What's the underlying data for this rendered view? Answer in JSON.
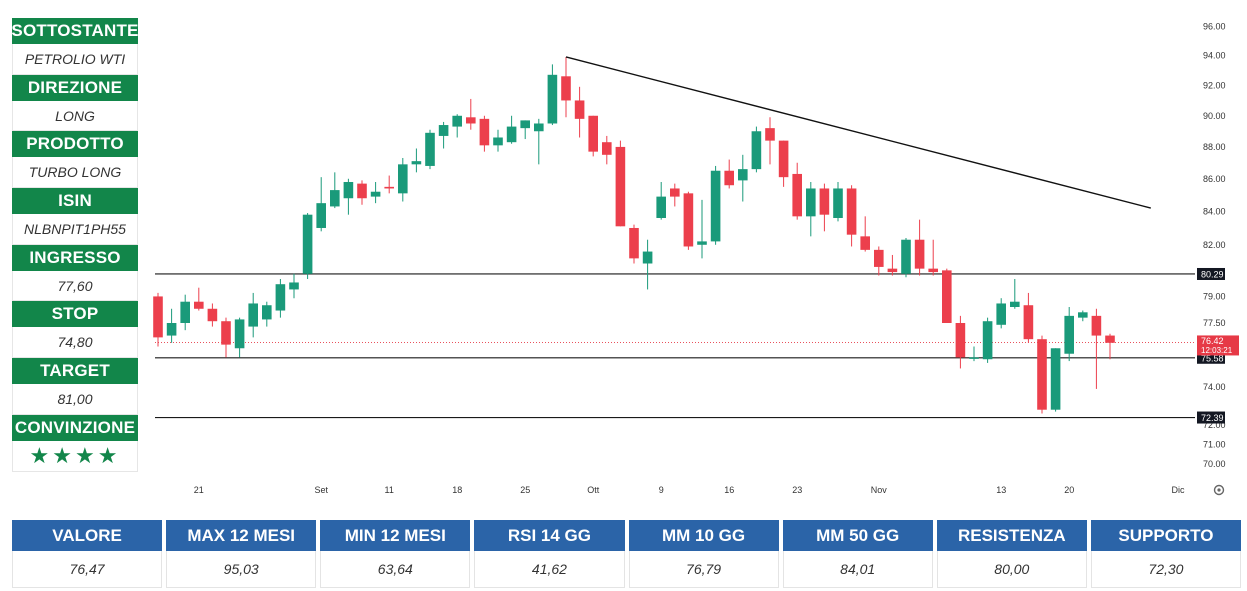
{
  "side_panel": {
    "items": [
      {
        "label": "SOTTOSTANTE",
        "value": "PETROLIO WTI"
      },
      {
        "label": "DIREZIONE",
        "value": "LONG"
      },
      {
        "label": "PRODOTTO",
        "value": "TURBO LONG"
      },
      {
        "label": "ISIN",
        "value": "NLBNPIT1PH55"
      },
      {
        "label": "INGRESSO",
        "value": "77,60"
      },
      {
        "label": "STOP",
        "value": "74,80"
      },
      {
        "label": "TARGET",
        "value": "81,00"
      },
      {
        "label": "CONVINZIONE",
        "value": "★★★★"
      }
    ],
    "accent": "#12864a"
  },
  "bottom_table": {
    "columns": [
      {
        "label": "VALORE",
        "value": "76,47"
      },
      {
        "label": "MAX 12 MESI",
        "value": "95,03"
      },
      {
        "label": "MIN 12 MESI",
        "value": "63,64"
      },
      {
        "label": "RSI 14 GG",
        "value": "41,62"
      },
      {
        "label": "MM 10 GG",
        "value": "76,79"
      },
      {
        "label": "MM 50 GG",
        "value": "84,01"
      },
      {
        "label": "RESISTENZA",
        "value": "80,00"
      },
      {
        "label": "SUPPORTO",
        "value": "72,30"
      }
    ],
    "accent": "#2b64a8"
  },
  "chart_data": {
    "type": "candlestick",
    "y_scale": "log",
    "ylim": [
      69.6,
      96.3
    ],
    "y_ticks": [
      "96.00",
      "94.00",
      "92.00",
      "90.00",
      "88.00",
      "86.00",
      "84.00",
      "82.00",
      "79.00",
      "77.50",
      "76.00",
      "74.00",
      "72.00",
      "71.00",
      "70.00"
    ],
    "x_labels": [
      "21",
      "Set",
      "11",
      "18",
      "25",
      "Ott",
      "9",
      "16",
      "23",
      "Nov",
      "13",
      "20",
      "Dic"
    ],
    "colors": {
      "up": "#1a9a7a",
      "down": "#ec3f4c",
      "line": "#111111"
    },
    "horizontal_levels": [
      {
        "value": 80.29,
        "label": "80.29"
      },
      {
        "value": 75.58,
        "label": "75.58"
      },
      {
        "value": 72.39,
        "label": "72.39"
      }
    ],
    "last_price": {
      "value": 76.42,
      "label": "76.42",
      "countdown": "12:03:21",
      "color": "#e63946"
    },
    "trendline": {
      "start": {
        "index": 30,
        "value": 93.9
      },
      "end": {
        "index": 73,
        "value": 84.2
      }
    },
    "candles": [
      {
        "o": 79.0,
        "h": 79.2,
        "l": 76.2,
        "c": 76.7
      },
      {
        "o": 76.8,
        "h": 78.3,
        "l": 76.4,
        "c": 77.5
      },
      {
        "o": 77.5,
        "h": 79.1,
        "l": 77.1,
        "c": 78.7
      },
      {
        "o": 78.7,
        "h": 79.5,
        "l": 78.2,
        "c": 78.3
      },
      {
        "o": 78.3,
        "h": 78.6,
        "l": 77.3,
        "c": 77.6
      },
      {
        "o": 77.6,
        "h": 77.8,
        "l": 75.6,
        "c": 76.3
      },
      {
        "o": 76.1,
        "h": 77.8,
        "l": 75.6,
        "c": 77.7
      },
      {
        "o": 77.3,
        "h": 79.2,
        "l": 76.7,
        "c": 78.6
      },
      {
        "o": 77.7,
        "h": 78.7,
        "l": 77.3,
        "c": 78.5
      },
      {
        "o": 78.2,
        "h": 80.0,
        "l": 77.8,
        "c": 79.7
      },
      {
        "o": 79.4,
        "h": 80.3,
        "l": 78.9,
        "c": 79.8
      },
      {
        "o": 80.3,
        "h": 83.9,
        "l": 80.0,
        "c": 83.8
      },
      {
        "o": 83.0,
        "h": 86.1,
        "l": 82.8,
        "c": 84.5
      },
      {
        "o": 84.3,
        "h": 86.4,
        "l": 84.2,
        "c": 85.3
      },
      {
        "o": 84.8,
        "h": 86.0,
        "l": 83.8,
        "c": 85.8
      },
      {
        "o": 85.7,
        "h": 85.9,
        "l": 84.4,
        "c": 84.8
      },
      {
        "o": 84.9,
        "h": 85.8,
        "l": 84.5,
        "c": 85.2
      },
      {
        "o": 85.5,
        "h": 86.2,
        "l": 85.1,
        "c": 85.4
      },
      {
        "o": 85.1,
        "h": 87.3,
        "l": 84.6,
        "c": 86.9
      },
      {
        "o": 86.9,
        "h": 87.9,
        "l": 86.4,
        "c": 87.1
      },
      {
        "o": 86.8,
        "h": 89.1,
        "l": 86.6,
        "c": 88.9
      },
      {
        "o": 88.7,
        "h": 89.6,
        "l": 87.9,
        "c": 89.4
      },
      {
        "o": 89.3,
        "h": 90.1,
        "l": 88.6,
        "c": 90.0
      },
      {
        "o": 89.9,
        "h": 91.1,
        "l": 89.1,
        "c": 89.5
      },
      {
        "o": 89.8,
        "h": 90.0,
        "l": 87.7,
        "c": 88.1
      },
      {
        "o": 88.1,
        "h": 89.1,
        "l": 87.7,
        "c": 88.6
      },
      {
        "o": 88.3,
        "h": 90.0,
        "l": 88.2,
        "c": 89.3
      },
      {
        "o": 89.2,
        "h": 89.7,
        "l": 88.5,
        "c": 89.7
      },
      {
        "o": 89.0,
        "h": 89.8,
        "l": 86.9,
        "c": 89.5
      },
      {
        "o": 89.5,
        "h": 93.4,
        "l": 89.4,
        "c": 92.7
      },
      {
        "o": 92.6,
        "h": 93.9,
        "l": 89.9,
        "c": 91.0
      },
      {
        "o": 91.0,
        "h": 91.9,
        "l": 88.6,
        "c": 89.8
      },
      {
        "o": 90.0,
        "h": 90.0,
        "l": 87.4,
        "c": 87.7
      },
      {
        "o": 88.3,
        "h": 88.7,
        "l": 86.9,
        "c": 87.5
      },
      {
        "o": 88.0,
        "h": 88.4,
        "l": 83.1,
        "c": 83.1
      },
      {
        "o": 83.0,
        "h": 83.2,
        "l": 80.9,
        "c": 81.2
      },
      {
        "o": 80.9,
        "h": 82.3,
        "l": 79.4,
        "c": 81.6
      },
      {
        "o": 83.6,
        "h": 85.8,
        "l": 83.5,
        "c": 84.9
      },
      {
        "o": 85.4,
        "h": 85.7,
        "l": 84.3,
        "c": 84.9
      },
      {
        "o": 85.1,
        "h": 85.2,
        "l": 81.7,
        "c": 81.9
      },
      {
        "o": 82.0,
        "h": 84.7,
        "l": 81.2,
        "c": 82.2
      },
      {
        "o": 82.2,
        "h": 86.8,
        "l": 82.0,
        "c": 86.5
      },
      {
        "o": 86.5,
        "h": 87.2,
        "l": 85.4,
        "c": 85.6
      },
      {
        "o": 85.9,
        "h": 87.5,
        "l": 84.6,
        "c": 86.6
      },
      {
        "o": 86.6,
        "h": 89.3,
        "l": 86.4,
        "c": 89.0
      },
      {
        "o": 89.2,
        "h": 89.9,
        "l": 86.9,
        "c": 88.4
      },
      {
        "o": 88.4,
        "h": 88.4,
        "l": 85.5,
        "c": 86.1
      },
      {
        "o": 86.3,
        "h": 87.0,
        "l": 83.5,
        "c": 83.7
      },
      {
        "o": 83.7,
        "h": 85.8,
        "l": 82.5,
        "c": 85.4
      },
      {
        "o": 85.4,
        "h": 85.7,
        "l": 82.8,
        "c": 83.8
      },
      {
        "o": 83.6,
        "h": 85.8,
        "l": 83.4,
        "c": 85.4
      },
      {
        "o": 85.4,
        "h": 85.6,
        "l": 81.9,
        "c": 82.6
      },
      {
        "o": 82.5,
        "h": 83.7,
        "l": 81.6,
        "c": 81.7
      },
      {
        "o": 81.7,
        "h": 81.9,
        "l": 80.2,
        "c": 80.7
      },
      {
        "o": 80.6,
        "h": 81.4,
        "l": 80.2,
        "c": 80.4
      },
      {
        "o": 80.3,
        "h": 82.4,
        "l": 80.1,
        "c": 82.3
      },
      {
        "o": 82.3,
        "h": 83.5,
        "l": 80.2,
        "c": 80.6
      },
      {
        "o": 80.6,
        "h": 82.3,
        "l": 80.2,
        "c": 80.4
      },
      {
        "o": 80.5,
        "h": 80.6,
        "l": 77.6,
        "c": 77.5
      },
      {
        "o": 77.5,
        "h": 77.9,
        "l": 75.0,
        "c": 75.6
      },
      {
        "o": 75.6,
        "h": 76.2,
        "l": 75.4,
        "c": 75.6
      },
      {
        "o": 75.5,
        "h": 77.8,
        "l": 75.3,
        "c": 77.6
      },
      {
        "o": 77.4,
        "h": 78.9,
        "l": 77.2,
        "c": 78.6
      },
      {
        "o": 78.4,
        "h": 80.0,
        "l": 78.3,
        "c": 78.7
      },
      {
        "o": 78.5,
        "h": 79.2,
        "l": 76.4,
        "c": 76.6
      },
      {
        "o": 76.6,
        "h": 76.8,
        "l": 72.6,
        "c": 72.8
      },
      {
        "o": 72.8,
        "h": 76.1,
        "l": 72.7,
        "c": 76.1
      },
      {
        "o": 75.8,
        "h": 78.4,
        "l": 75.4,
        "c": 77.9
      },
      {
        "o": 77.8,
        "h": 78.2,
        "l": 77.6,
        "c": 78.1
      },
      {
        "o": 77.9,
        "h": 78.3,
        "l": 73.9,
        "c": 76.8
      },
      {
        "o": 76.8,
        "h": 76.9,
        "l": 75.5,
        "c": 76.4
      }
    ]
  }
}
